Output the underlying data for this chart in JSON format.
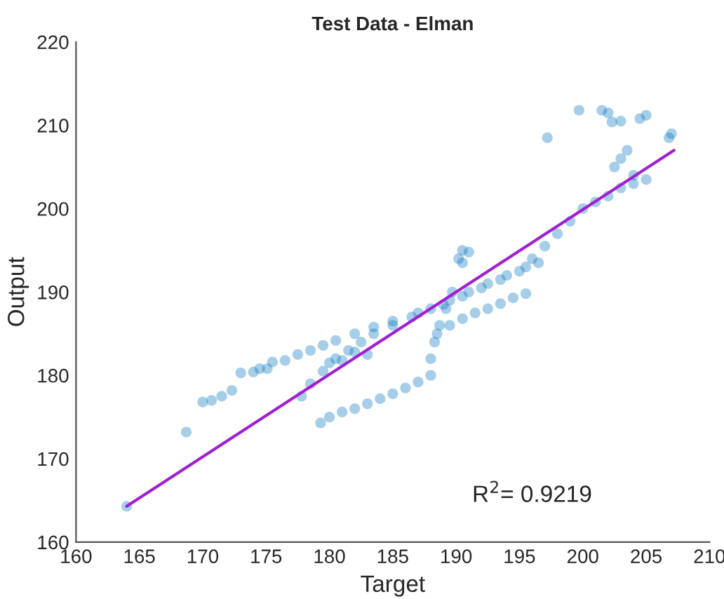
{
  "chart_data": {
    "type": "scatter",
    "title": "Test Data - Elman",
    "xlabel": "Target",
    "ylabel": "Output",
    "xlim": [
      160,
      210
    ],
    "xticks": [
      160,
      165,
      170,
      175,
      180,
      185,
      190,
      195,
      200,
      205,
      210
    ],
    "ylim": [
      160,
      220
    ],
    "yticks": [
      160,
      170,
      180,
      190,
      200,
      210,
      220
    ],
    "grid": false,
    "legend": false,
    "marker": "circle",
    "annotations": [
      "R$^{2}$= 0.9219"
    ],
    "series": [
      {
        "color": "#0072bd",
        "x": [
          164,
          168.7,
          170,
          170.7,
          171.5,
          172.3,
          173,
          174,
          174.5,
          175.1,
          175.5,
          176.5,
          177.5,
          178.5,
          179.5,
          180.5,
          182,
          183.5,
          185,
          187,
          189,
          190.5,
          192,
          193.5,
          195,
          196,
          197,
          198,
          199,
          200,
          201,
          202,
          203,
          204,
          177.8,
          178.5,
          179.5,
          180.5,
          181.5,
          182.5,
          183.5,
          185,
          186.5,
          188,
          189.5,
          191,
          192.5,
          194,
          195.5,
          196.5,
          190.5,
          191,
          190.2,
          190.5,
          179.3,
          180,
          181,
          182,
          183,
          184,
          185,
          186,
          187,
          188,
          188,
          188.3,
          188.7,
          189.2,
          189.7,
          188.5,
          189.5,
          190.5,
          191.5,
          192.5,
          193.5,
          194.5,
          195.5,
          180,
          181,
          182,
          183,
          199.7,
          201.5,
          202,
          203,
          202.3,
          204.5,
          205,
          203.5,
          202.5,
          203,
          197.2,
          206.8,
          207,
          204,
          205
        ],
        "values": [
          164.3,
          173.2,
          176.8,
          177,
          177.5,
          178.2,
          180.3,
          180.4,
          180.8,
          180.8,
          181.6,
          181.8,
          182.5,
          183,
          183.6,
          184.2,
          185,
          185.8,
          186.5,
          187.5,
          188.5,
          189.5,
          190.5,
          191.5,
          192.5,
          194,
          195.5,
          197,
          198.5,
          200,
          200.8,
          201.5,
          202.5,
          203,
          177.5,
          179,
          180.5,
          182,
          183,
          184,
          185,
          186,
          187,
          188,
          189,
          190,
          191,
          192,
          193,
          193.5,
          195,
          194.8,
          194,
          193.5,
          174.3,
          175,
          175.6,
          176,
          176.6,
          177.2,
          177.8,
          178.5,
          179.2,
          180,
          182,
          184,
          186,
          188,
          190,
          185,
          186,
          186.8,
          187.5,
          188,
          188.6,
          189.3,
          189.8,
          181.5,
          181.8,
          182.8,
          182.5,
          211.8,
          211.8,
          211.5,
          210.5,
          210.4,
          210.8,
          211.2,
          207,
          205,
          206,
          208.5,
          208.5,
          209,
          204,
          203.5
        ]
      },
      {
        "type": "line",
        "color": "#a020d0",
        "marker": "none",
        "x": [
          164,
          207.2
        ],
        "values": [
          164.3,
          207
        ]
      }
    ]
  }
}
